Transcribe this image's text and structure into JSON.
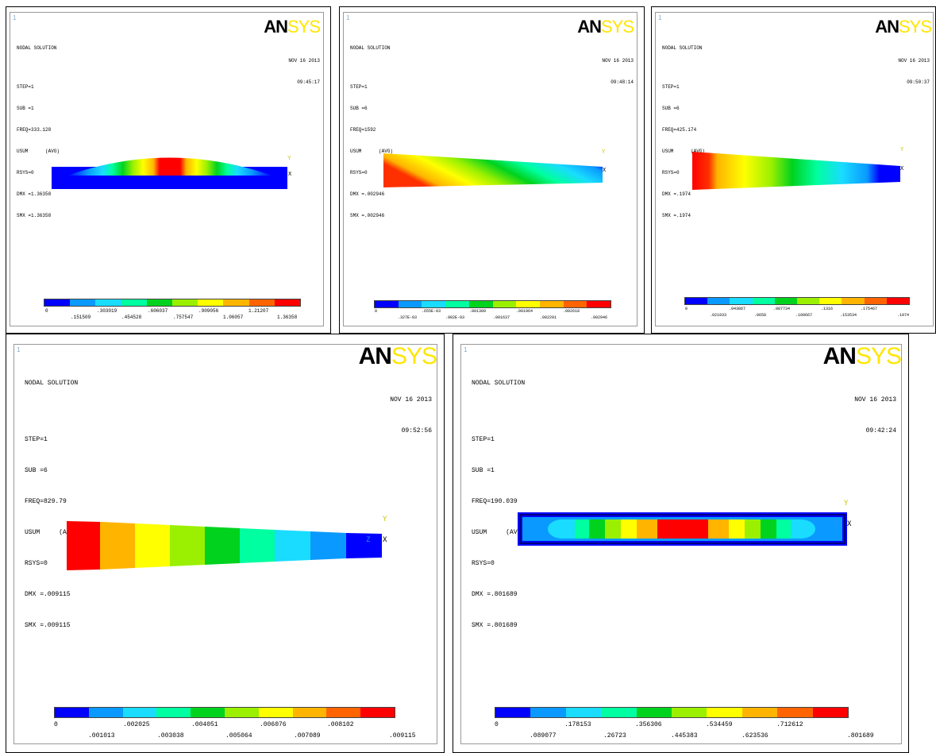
{
  "colors": {
    "legend": [
      "#0000ff",
      "#0a9aff",
      "#19dcff",
      "#00ffa0",
      "#00d21e",
      "#9af000",
      "#ffff00",
      "#ffb400",
      "#ff6400",
      "#ff0000"
    ],
    "logo_black": "#000000",
    "logo_yellow": "#ffe600"
  },
  "plots": [
    {
      "panel_no": "1",
      "title": "NODAL SOLUTION",
      "step": "STEP=1",
      "sub": "SUB =1",
      "freq": "FREQ=333.128",
      "usum": "USUM",
      "avg": "(AVG)",
      "rsys": "RSYS=0",
      "dmx": "DMX =1.36358",
      "smx": "SMX =1.36358",
      "date": "NOV 16 2013",
      "time": "09:45:17",
      "logo_a": "AN",
      "logo_b": "SYS",
      "legend_top": [
        ".303019",
        ".606037",
        ".909056",
        "1.21207"
      ],
      "legend_bottom": [
        ".151509",
        ".454528",
        ".757547",
        "1.06057",
        "1.36358"
      ],
      "legend_zero": "0"
    },
    {
      "panel_no": "1",
      "title": "NODAL SOLUTION",
      "step": "STEP=1",
      "sub": "SUB =6",
      "freq": "FREQ=1592",
      "usum": "USUM",
      "avg": "(AVG)",
      "rsys": "RSYS=0",
      "dmx": "DMX =.002946",
      "smx": "SMX =.002946",
      "date": "NOV 16 2013",
      "time": "09:48:14",
      "logo_a": "AN",
      "logo_b": "SYS",
      "legend_top": [
        ".655E-03",
        ".001309",
        ".001964",
        ".002618"
      ],
      "legend_bottom": [
        ".327E-03",
        ".982E-03",
        ".001637",
        ".002291",
        ".002946"
      ],
      "legend_zero": "0"
    },
    {
      "panel_no": "1",
      "title": "NODAL SOLUTION",
      "step": "STEP=1",
      "sub": "SUB =6",
      "freq": "FREQ=425.174",
      "usum": "USUM",
      "avg": "(AVG)",
      "rsys": "RSYS=0",
      "dmx": "DMX =.1974",
      "smx": "SMX =.1974",
      "date": "NOV 16 2013",
      "time": "09:50:37",
      "logo_a": "AN",
      "logo_b": "SYS",
      "legend_top": [
        ".043867",
        ".087734",
        ".1316",
        ".175467"
      ],
      "legend_bottom": [
        ".021933",
        ".0658",
        ".109667",
        ".153534",
        ".1974"
      ],
      "legend_zero": "0"
    },
    {
      "panel_no": "1",
      "title": "NODAL SOLUTION",
      "step": "STEP=1",
      "sub": "SUB =6",
      "freq": "FREQ=829.79",
      "usum": "USUM",
      "avg": "(AVG)",
      "rsys": "RSYS=0",
      "dmx": "DMX =.009115",
      "smx": "SMX =.009115",
      "date": "NOV 16 2013",
      "time": "09:52:56",
      "logo_a": "AN",
      "logo_b": "SYS",
      "legend_top": [
        ".002025",
        ".004051",
        ".006076",
        ".008102"
      ],
      "legend_bottom": [
        ".001013",
        ".003038",
        ".005064",
        ".007089",
        ".009115"
      ],
      "legend_zero": "0"
    },
    {
      "panel_no": "1",
      "title": "NODAL SOLUTION",
      "step": "STEP=1",
      "sub": "SUB =1",
      "freq": "FREQ=190.039",
      "usum": "USUM",
      "avg": "(AVG)",
      "rsys": "RSYS=0",
      "dmx": "DMX =.801689",
      "smx": "SMX =.801689",
      "date": "NOV 16 2013",
      "time": "09:42:24",
      "logo_a": "AN",
      "logo_b": "SYS",
      "legend_top": [
        ".178153",
        ".356306",
        ".534459",
        ".712612"
      ],
      "legend_bottom": [
        ".089077",
        ".26723",
        ".445383",
        ".623536",
        ".801689"
      ],
      "legend_zero": "0"
    }
  ],
  "axis_labels": {
    "y": "Y",
    "z": "Z",
    "x": "X"
  }
}
